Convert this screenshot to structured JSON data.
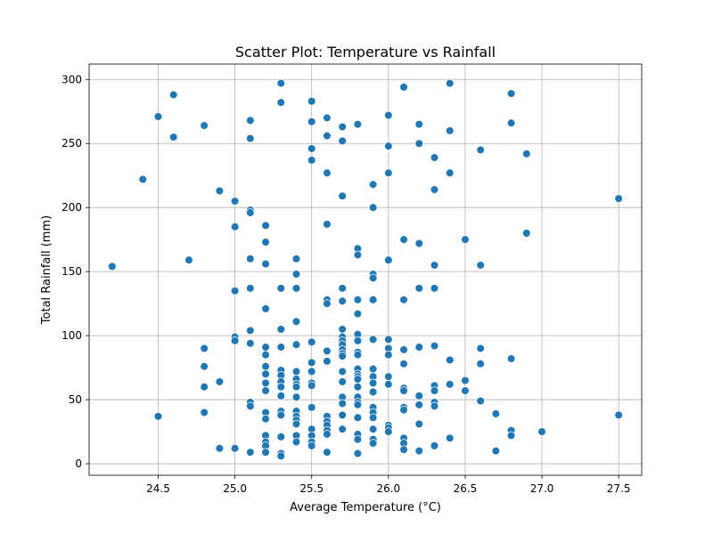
{
  "chart_data": {
    "type": "scatter",
    "title": "Scatter Plot: Temperature vs Rainfall",
    "xlabel": "Average Temperature (°C)",
    "ylabel": "Total Rainfall (mm)",
    "xlim": [
      24.05,
      27.65
    ],
    "ylim": [
      -9,
      312
    ],
    "xticks": [
      24.5,
      25.0,
      25.5,
      26.0,
      26.5,
      27.0,
      27.5
    ],
    "xtick_labels": [
      "24.5",
      "25.0",
      "25.5",
      "26.0",
      "26.5",
      "27.0",
      "27.5"
    ],
    "yticks": [
      0,
      50,
      100,
      150,
      200,
      250,
      300
    ],
    "ytick_labels": [
      "0",
      "50",
      "100",
      "150",
      "200",
      "250",
      "300"
    ],
    "grid": true,
    "marker_color": "#1f77b4",
    "points": [
      [
        24.2,
        154
      ],
      [
        24.4,
        222
      ],
      [
        24.5,
        271
      ],
      [
        24.5,
        37
      ],
      [
        24.6,
        288
      ],
      [
        24.6,
        255
      ],
      [
        24.7,
        159
      ],
      [
        24.8,
        264
      ],
      [
        24.8,
        90
      ],
      [
        24.8,
        76
      ],
      [
        24.8,
        60
      ],
      [
        24.8,
        40
      ],
      [
        24.9,
        213
      ],
      [
        24.9,
        64
      ],
      [
        24.9,
        12
      ],
      [
        25.0,
        205
      ],
      [
        25.0,
        185
      ],
      [
        25.0,
        135
      ],
      [
        25.0,
        99
      ],
      [
        25.0,
        96
      ],
      [
        25.0,
        12
      ],
      [
        25.1,
        268
      ],
      [
        25.1,
        254
      ],
      [
        25.1,
        198
      ],
      [
        25.1,
        196
      ],
      [
        25.1,
        160
      ],
      [
        25.1,
        137
      ],
      [
        25.1,
        104
      ],
      [
        25.1,
        94
      ],
      [
        25.1,
        48
      ],
      [
        25.1,
        45
      ],
      [
        25.1,
        9
      ],
      [
        25.2,
        186
      ],
      [
        25.2,
        173
      ],
      [
        25.2,
        156
      ],
      [
        25.2,
        121
      ],
      [
        25.2,
        91
      ],
      [
        25.2,
        85
      ],
      [
        25.2,
        76
      ],
      [
        25.2,
        70
      ],
      [
        25.2,
        63
      ],
      [
        25.2,
        57
      ],
      [
        25.2,
        40
      ],
      [
        25.2,
        35
      ],
      [
        25.2,
        22
      ],
      [
        25.2,
        17
      ],
      [
        25.2,
        14
      ],
      [
        25.2,
        9
      ],
      [
        25.3,
        297
      ],
      [
        25.3,
        282
      ],
      [
        25.3,
        137
      ],
      [
        25.3,
        105
      ],
      [
        25.3,
        91
      ],
      [
        25.3,
        73
      ],
      [
        25.3,
        69
      ],
      [
        25.3,
        64
      ],
      [
        25.3,
        60
      ],
      [
        25.3,
        53
      ],
      [
        25.3,
        41
      ],
      [
        25.3,
        38
      ],
      [
        25.3,
        21
      ],
      [
        25.3,
        8
      ],
      [
        25.3,
        6
      ],
      [
        25.4,
        160
      ],
      [
        25.4,
        148
      ],
      [
        25.4,
        137
      ],
      [
        25.4,
        111
      ],
      [
        25.4,
        93
      ],
      [
        25.4,
        72
      ],
      [
        25.4,
        66
      ],
      [
        25.4,
        62
      ],
      [
        25.4,
        60
      ],
      [
        25.4,
        52
      ],
      [
        25.4,
        41
      ],
      [
        25.4,
        37
      ],
      [
        25.4,
        34
      ],
      [
        25.4,
        31
      ],
      [
        25.4,
        22
      ],
      [
        25.4,
        17
      ],
      [
        25.5,
        283
      ],
      [
        25.5,
        267
      ],
      [
        25.5,
        246
      ],
      [
        25.5,
        237
      ],
      [
        25.5,
        95
      ],
      [
        25.5,
        79
      ],
      [
        25.5,
        72
      ],
      [
        25.5,
        63
      ],
      [
        25.5,
        61
      ],
      [
        25.5,
        44
      ],
      [
        25.5,
        27
      ],
      [
        25.5,
        22
      ],
      [
        25.5,
        17
      ],
      [
        25.5,
        14
      ],
      [
        25.6,
        270
      ],
      [
        25.6,
        256
      ],
      [
        25.6,
        227
      ],
      [
        25.6,
        187
      ],
      [
        25.6,
        128
      ],
      [
        25.6,
        125
      ],
      [
        25.6,
        88
      ],
      [
        25.6,
        80
      ],
      [
        25.6,
        37
      ],
      [
        25.6,
        33
      ],
      [
        25.6,
        30
      ],
      [
        25.6,
        26
      ],
      [
        25.6,
        23
      ],
      [
        25.6,
        9
      ],
      [
        25.7,
        263
      ],
      [
        25.7,
        252
      ],
      [
        25.7,
        209
      ],
      [
        25.7,
        137
      ],
      [
        25.7,
        127
      ],
      [
        25.7,
        105
      ],
      [
        25.7,
        99
      ],
      [
        25.7,
        96
      ],
      [
        25.7,
        93
      ],
      [
        25.7,
        89
      ],
      [
        25.7,
        86
      ],
      [
        25.7,
        84
      ],
      [
        25.7,
        72
      ],
      [
        25.7,
        64
      ],
      [
        25.7,
        52
      ],
      [
        25.7,
        47
      ],
      [
        25.7,
        38
      ],
      [
        25.7,
        27
      ],
      [
        25.8,
        265
      ],
      [
        25.8,
        168
      ],
      [
        25.8,
        163
      ],
      [
        25.8,
        128
      ],
      [
        25.8,
        117
      ],
      [
        25.8,
        101
      ],
      [
        25.8,
        96
      ],
      [
        25.8,
        87
      ],
      [
        25.8,
        85
      ],
      [
        25.8,
        74
      ],
      [
        25.8,
        70
      ],
      [
        25.8,
        68
      ],
      [
        25.8,
        66
      ],
      [
        25.8,
        60
      ],
      [
        25.8,
        52
      ],
      [
        25.8,
        48
      ],
      [
        25.8,
        46
      ],
      [
        25.8,
        36
      ],
      [
        25.8,
        23
      ],
      [
        25.8,
        19
      ],
      [
        25.8,
        8
      ],
      [
        25.9,
        218
      ],
      [
        25.9,
        200
      ],
      [
        25.9,
        148
      ],
      [
        25.9,
        145
      ],
      [
        25.9,
        128
      ],
      [
        25.9,
        97
      ],
      [
        25.9,
        74
      ],
      [
        25.9,
        68
      ],
      [
        25.9,
        63
      ],
      [
        25.9,
        56
      ],
      [
        25.9,
        44
      ],
      [
        25.9,
        40
      ],
      [
        25.9,
        36
      ],
      [
        25.9,
        27
      ],
      [
        25.9,
        19
      ],
      [
        25.9,
        16
      ],
      [
        26.0,
        272
      ],
      [
        26.0,
        248
      ],
      [
        26.0,
        227
      ],
      [
        26.0,
        159
      ],
      [
        26.0,
        97
      ],
      [
        26.0,
        90
      ],
      [
        26.0,
        85
      ],
      [
        26.0,
        68
      ],
      [
        26.0,
        62
      ],
      [
        26.0,
        30
      ],
      [
        26.0,
        28
      ],
      [
        26.0,
        25
      ],
      [
        26.1,
        294
      ],
      [
        26.1,
        175
      ],
      [
        26.1,
        128
      ],
      [
        26.1,
        89
      ],
      [
        26.1,
        78
      ],
      [
        26.1,
        59
      ],
      [
        26.1,
        57
      ],
      [
        26.1,
        44
      ],
      [
        26.1,
        42
      ],
      [
        26.1,
        20
      ],
      [
        26.1,
        16
      ],
      [
        26.1,
        11
      ],
      [
        26.2,
        265
      ],
      [
        26.2,
        250
      ],
      [
        26.2,
        172
      ],
      [
        26.2,
        137
      ],
      [
        26.2,
        91
      ],
      [
        26.2,
        53
      ],
      [
        26.2,
        46
      ],
      [
        26.2,
        31
      ],
      [
        26.2,
        10
      ],
      [
        26.3,
        239
      ],
      [
        26.3,
        214
      ],
      [
        26.3,
        155
      ],
      [
        26.3,
        137
      ],
      [
        26.3,
        92
      ],
      [
        26.3,
        61
      ],
      [
        26.3,
        57
      ],
      [
        26.3,
        48
      ],
      [
        26.3,
        45
      ],
      [
        26.3,
        14
      ],
      [
        26.4,
        297
      ],
      [
        26.4,
        260
      ],
      [
        26.4,
        227
      ],
      [
        26.4,
        81
      ],
      [
        26.4,
        62
      ],
      [
        26.4,
        20
      ],
      [
        26.5,
        175
      ],
      [
        26.5,
        65
      ],
      [
        26.5,
        57
      ],
      [
        26.6,
        245
      ],
      [
        26.6,
        155
      ],
      [
        26.6,
        90
      ],
      [
        26.6,
        78
      ],
      [
        26.6,
        49
      ],
      [
        26.7,
        39
      ],
      [
        26.7,
        10
      ],
      [
        26.8,
        289
      ],
      [
        26.8,
        266
      ],
      [
        26.8,
        82
      ],
      [
        26.8,
        26
      ],
      [
        26.8,
        22
      ],
      [
        26.9,
        242
      ],
      [
        26.9,
        180
      ],
      [
        27.0,
        25
      ],
      [
        27.5,
        207
      ],
      [
        27.5,
        38
      ]
    ]
  }
}
